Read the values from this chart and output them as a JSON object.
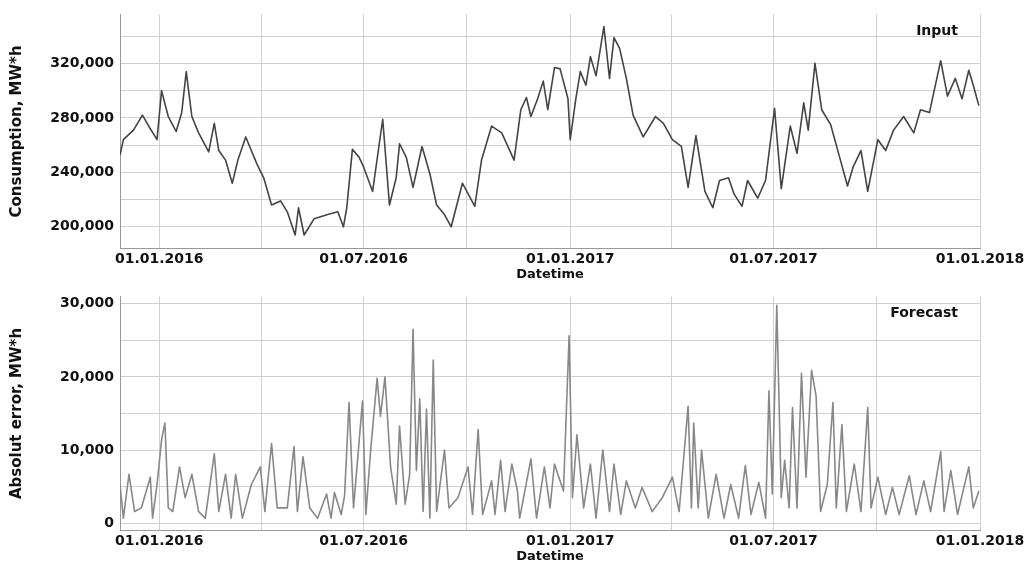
{
  "chart_data": [
    {
      "type": "line",
      "annotations": [
        "Input"
      ],
      "xlabel": "Datetime",
      "ylabel": "Consumption, MW*h",
      "grid": true,
      "line_style": "solid",
      "xlim": [
        "2015-11-27",
        "2018-01-01"
      ],
      "xticks": [
        {
          "value": "2016-01-01",
          "label": "01.01.2016"
        },
        {
          "value": "2016-04-01",
          "label": null
        },
        {
          "value": "2016-07-01",
          "label": "01.07.2016"
        },
        {
          "value": "2016-10-01",
          "label": null
        },
        {
          "value": "2017-01-01",
          "label": "01.01.2017"
        },
        {
          "value": "2017-04-01",
          "label": null
        },
        {
          "value": "2017-07-01",
          "label": "01.07.2017"
        },
        {
          "value": "2017-10-01",
          "label": null
        },
        {
          "value": "2018-01-01",
          "label": "01.01.2018"
        }
      ],
      "ylim": [
        184000,
        356000
      ],
      "yticks": [
        {
          "value": 200000,
          "label": "200,000"
        },
        {
          "value": 220000,
          "label": null
        },
        {
          "value": 240000,
          "label": "240,000"
        },
        {
          "value": 260000,
          "label": null
        },
        {
          "value": 280000,
          "label": "280,000"
        },
        {
          "value": 300000,
          "label": null
        },
        {
          "value": 320000,
          "label": "320,000"
        },
        {
          "value": 340000,
          "label": null
        }
      ],
      "series": [
        {
          "color": "#444444",
          "x": [
            "2015-11-27",
            "2015-11-30",
            "2015-12-09",
            "2015-12-17",
            "2015-12-24",
            "2015-12-30",
            "2016-01-03",
            "2016-01-09",
            "2016-01-16",
            "2016-01-21",
            "2016-01-25",
            "2016-01-30",
            "2016-02-05",
            "2016-02-14",
            "2016-02-19",
            "2016-02-23",
            "2016-02-29",
            "2016-03-06",
            "2016-03-11",
            "2016-03-18",
            "2016-03-28",
            "2016-04-03",
            "2016-04-10",
            "2016-04-18",
            "2016-04-24",
            "2016-05-01",
            "2016-05-04",
            "2016-05-09",
            "2016-05-18",
            "2016-05-30",
            "2016-06-08",
            "2016-06-13",
            "2016-06-16",
            "2016-06-21",
            "2016-06-27",
            "2016-07-01",
            "2016-07-09",
            "2016-07-18",
            "2016-07-24",
            "2016-07-30",
            "2016-08-02",
            "2016-08-08",
            "2016-08-14",
            "2016-08-22",
            "2016-08-29",
            "2016-09-04",
            "2016-09-11",
            "2016-09-17",
            "2016-09-27",
            "2016-10-08",
            "2016-10-14",
            "2016-10-23",
            "2016-11-01",
            "2016-11-12",
            "2016-11-18",
            "2016-11-23",
            "2016-11-27",
            "2016-12-03",
            "2016-12-08",
            "2016-12-12",
            "2016-12-18",
            "2016-12-23",
            "2016-12-30",
            "2017-01-01",
            "2017-01-06",
            "2017-01-10",
            "2017-01-15",
            "2017-01-19",
            "2017-01-24",
            "2017-01-31",
            "2017-02-05",
            "2017-02-09",
            "2017-02-14",
            "2017-02-20",
            "2017-02-26",
            "2017-03-07",
            "2017-03-18",
            "2017-03-25",
            "2017-04-02",
            "2017-04-10",
            "2017-04-16",
            "2017-04-23",
            "2017-05-01",
            "2017-05-08",
            "2017-05-14",
            "2017-05-22",
            "2017-05-27",
            "2017-06-03",
            "2017-06-08",
            "2017-06-17",
            "2017-06-24",
            "2017-07-02",
            "2017-07-08",
            "2017-07-16",
            "2017-07-22",
            "2017-07-28",
            "2017-08-01",
            "2017-08-07",
            "2017-08-13",
            "2017-08-21",
            "2017-08-29",
            "2017-09-05",
            "2017-09-10",
            "2017-09-17",
            "2017-09-23",
            "2017-10-02",
            "2017-10-09",
            "2017-10-16",
            "2017-10-25",
            "2017-11-03",
            "2017-11-09",
            "2017-11-17",
            "2017-11-27",
            "2017-12-03",
            "2017-12-10",
            "2017-12-16",
            "2017-12-22",
            "2017-12-26",
            "2017-12-31"
          ],
          "values": [
            252500,
            264000,
            271000,
            282000,
            272000,
            264000,
            300000,
            281000,
            270000,
            284000,
            314000,
            281000,
            269000,
            255000,
            276000,
            256000,
            249000,
            232000,
            249000,
            266000,
            246000,
            236000,
            216000,
            219000,
            211000,
            194000,
            214000,
            194000,
            206000,
            209000,
            211000,
            200000,
            214000,
            257000,
            251000,
            244000,
            226000,
            279000,
            216000,
            236000,
            261000,
            251000,
            229000,
            259000,
            239000,
            216000,
            209000,
            200000,
            232000,
            215000,
            249000,
            274000,
            269000,
            249000,
            286000,
            295000,
            281000,
            294000,
            307000,
            286000,
            317000,
            316000,
            294000,
            264000,
            294000,
            314000,
            304000,
            325000,
            311000,
            347000,
            309000,
            339000,
            331000,
            309000,
            282000,
            266000,
            281000,
            276000,
            264000,
            259000,
            229000,
            267000,
            226000,
            214000,
            234000,
            236000,
            224000,
            215000,
            234000,
            221000,
            234000,
            287000,
            228000,
            274000,
            254000,
            291000,
            271000,
            320000,
            286000,
            275000,
            251000,
            230000,
            244000,
            256000,
            226000,
            264000,
            256000,
            271000,
            281000,
            269000,
            286000,
            284000,
            322000,
            296000,
            309000,
            294000,
            315000,
            304000,
            289000
          ]
        }
      ]
    },
    {
      "type": "line",
      "annotations": [
        "Forecast"
      ],
      "xlabel": "Datetime",
      "ylabel": "Absolut error, MW*h",
      "grid": true,
      "line_style": "solid",
      "xlim": [
        "2015-11-27",
        "2018-01-01"
      ],
      "xticks": [
        {
          "value": "2016-01-01",
          "label": "01.01.2016"
        },
        {
          "value": "2016-04-01",
          "label": null
        },
        {
          "value": "2016-07-01",
          "label": "01.07.2016"
        },
        {
          "value": "2016-10-01",
          "label": null
        },
        {
          "value": "2017-01-01",
          "label": "01.01.2017"
        },
        {
          "value": "2017-04-01",
          "label": null
        },
        {
          "value": "2017-07-01",
          "label": "01.07.2017"
        },
        {
          "value": "2017-10-01",
          "label": null
        },
        {
          "value": "2018-01-01",
          "label": "01.01.2018"
        }
      ],
      "ylim": [
        -1000,
        31000
      ],
      "yticks": [
        0,
        {
          "value": 5000,
          "label": null
        },
        {
          "value": 10000,
          "label": "10,000"
        },
        {
          "value": 15000,
          "label": null
        },
        {
          "value": 20000,
          "label": "20,000"
        },
        {
          "value": 25000,
          "label": null
        },
        {
          "value": 30000,
          "label": "30,000"
        }
      ],
      "series": [
        {
          "color": "#888888",
          "x": [
            "2015-11-27",
            "2015-11-30",
            "2015-12-05",
            "2015-12-10",
            "2015-12-16",
            "2015-12-24",
            "2015-12-26",
            "2015-12-30",
            "2016-01-03",
            "2016-01-06",
            "2016-01-09",
            "2016-01-13",
            "2016-01-19",
            "2016-01-24",
            "2016-01-30",
            "2016-02-05",
            "2016-02-11",
            "2016-02-19",
            "2016-02-23",
            "2016-02-29",
            "2016-03-05",
            "2016-03-09",
            "2016-03-15",
            "2016-03-23",
            "2016-03-31",
            "2016-04-04",
            "2016-04-10",
            "2016-04-15",
            "2016-04-24",
            "2016-04-30",
            "2016-05-03",
            "2016-05-08",
            "2016-05-14",
            "2016-05-21",
            "2016-05-29",
            "2016-06-02",
            "2016-06-05",
            "2016-06-11",
            "2016-06-14",
            "2016-06-18",
            "2016-06-22",
            "2016-06-30",
            "2016-07-03",
            "2016-07-07",
            "2016-07-13",
            "2016-07-16",
            "2016-07-20",
            "2016-07-25",
            "2016-07-30",
            "2016-08-02",
            "2016-08-07",
            "2016-08-11",
            "2016-08-14",
            "2016-08-17",
            "2016-08-20",
            "2016-08-23",
            "2016-08-26",
            "2016-08-29",
            "2016-09-01",
            "2016-09-04",
            "2016-09-11",
            "2016-09-15",
            "2016-09-23",
            "2016-10-02",
            "2016-10-06",
            "2016-10-11",
            "2016-10-15",
            "2016-10-23",
            "2016-10-26",
            "2016-10-31",
            "2016-11-04",
            "2016-11-10",
            "2016-11-15",
            "2016-11-17",
            "2016-11-27",
            "2016-12-02",
            "2016-12-09",
            "2016-12-14",
            "2016-12-18",
            "2016-12-26",
            "2016-12-31",
            "2017-01-03",
            "2017-01-07",
            "2017-01-13",
            "2017-01-19",
            "2017-01-24",
            "2017-01-30",
            "2017-02-05",
            "2017-02-09",
            "2017-02-15",
            "2017-02-20",
            "2017-02-28",
            "2017-03-06",
            "2017-03-15",
            "2017-03-24",
            "2017-04-02",
            "2017-04-08",
            "2017-04-16",
            "2017-04-19",
            "2017-04-21",
            "2017-04-25",
            "2017-04-28",
            "2017-05-04",
            "2017-05-11",
            "2017-05-18",
            "2017-05-24",
            "2017-05-31",
            "2017-06-06",
            "2017-06-11",
            "2017-06-18",
            "2017-06-24",
            "2017-06-27",
            "2017-06-30",
            "2017-07-04",
            "2017-07-08",
            "2017-07-11",
            "2017-07-15",
            "2017-07-18",
            "2017-07-22",
            "2017-07-26",
            "2017-07-30",
            "2017-08-04",
            "2017-08-08",
            "2017-08-12",
            "2017-08-18",
            "2017-08-23",
            "2017-08-26",
            "2017-08-31",
            "2017-09-04",
            "2017-09-11",
            "2017-09-17",
            "2017-09-23",
            "2017-09-26",
            "2017-10-02",
            "2017-10-09",
            "2017-10-15",
            "2017-10-21",
            "2017-10-30",
            "2017-11-05",
            "2017-11-12",
            "2017-11-18",
            "2017-11-27",
            "2017-11-30",
            "2017-12-06",
            "2017-12-12",
            "2017-12-22",
            "2017-12-26",
            "2017-12-31"
          ],
          "values": [
            5300,
            700,
            6700,
            1600,
            2100,
            6300,
            700,
            5300,
            11400,
            13700,
            2100,
            1600,
            7700,
            3500,
            6700,
            1600,
            700,
            9500,
            1600,
            6700,
            700,
            6700,
            700,
            5300,
            7700,
            1600,
            10900,
            2100,
            2100,
            10500,
            1600,
            9100,
            2100,
            700,
            4000,
            700,
            4200,
            1200,
            3700,
            16500,
            2100,
            16700,
            1200,
            9500,
            19800,
            14600,
            20000,
            7700,
            2600,
            13300,
            2600,
            6700,
            26500,
            7200,
            17000,
            1600,
            15600,
            700,
            22300,
            1600,
            10000,
            2100,
            3500,
            7700,
            1200,
            12800,
            1200,
            5800,
            1200,
            8600,
            1600,
            8100,
            4400,
            700,
            8800,
            700,
            7700,
            2100,
            8100,
            4400,
            25600,
            3500,
            12100,
            2100,
            8100,
            700,
            10000,
            1600,
            8100,
            1200,
            5800,
            2100,
            4900,
            1600,
            3500,
            6300,
            1600,
            16000,
            2100,
            13700,
            2100,
            10000,
            700,
            6700,
            700,
            5300,
            700,
            7900,
            1200,
            5600,
            700,
            18100,
            4000,
            29800,
            3500,
            8600,
            2100,
            15800,
            2100,
            20500,
            6300,
            20900,
            17400,
            1600,
            5300,
            16500,
            2100,
            13500,
            1600,
            8100,
            1600,
            15800,
            2100,
            6300,
            1200,
            4900,
            1200,
            6500,
            1200,
            5800,
            1600,
            9800,
            1600,
            7200,
            1200,
            7700,
            2100,
            4400
          ]
        }
      ]
    }
  ]
}
